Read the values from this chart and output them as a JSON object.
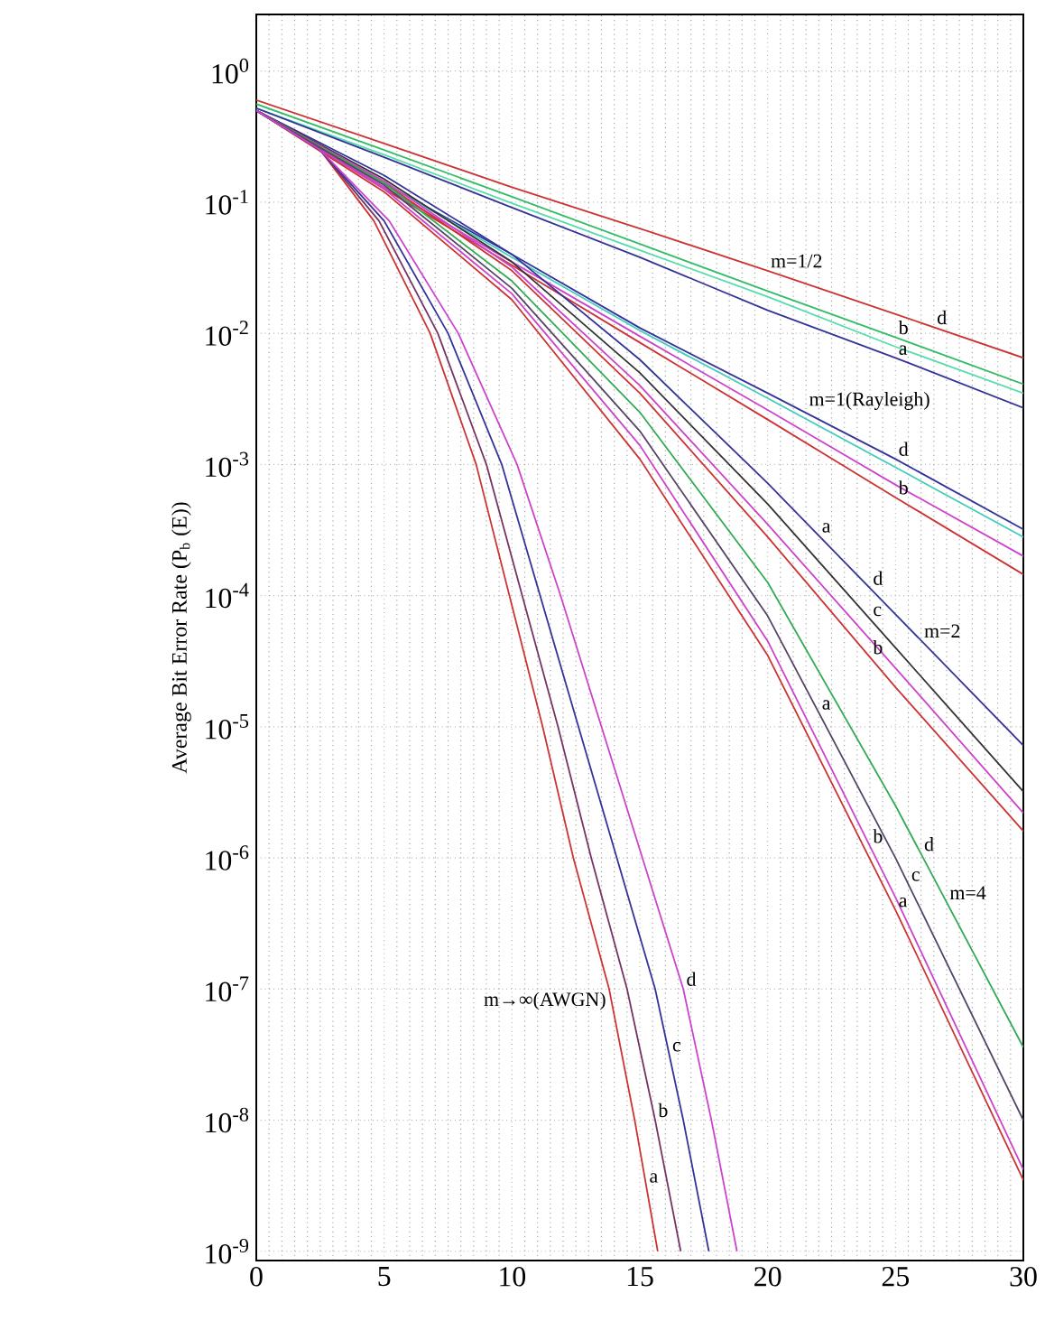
{
  "chart_data": {
    "type": "line",
    "ylabel": "Average Bit Error Rate (P$_{b}$ (E))",
    "log": "y",
    "grid": true,
    "marker": "none",
    "line_style": "solid",
    "xlim": [
      0,
      30
    ],
    "ylim": [
      8.5e-10,
      2.7
    ],
    "xticks": [
      0,
      5,
      10,
      15,
      20,
      25,
      30
    ],
    "yticks": [
      {
        "value": 1,
        "label": "10$^{0}$"
      },
      {
        "value": 0.1,
        "label": "10$^{-1}$"
      },
      {
        "value": 0.01,
        "label": "10$^{-2}$"
      },
      {
        "value": 0.001,
        "label": "10$^{-3}$"
      },
      {
        "value": 0.0001,
        "label": "10$^{-4}$"
      },
      {
        "value": 1e-05,
        "label": "10$^{-5}$"
      },
      {
        "value": 1e-06,
        "label": "10$^{-6}$"
      },
      {
        "value": 1e-07,
        "label": "10$^{-7}$"
      },
      {
        "value": 1e-08,
        "label": "10$^{-8}$"
      },
      {
        "value": 1e-09,
        "label": "10$^{-9}$"
      }
    ],
    "x": [
      0,
      5,
      10,
      15,
      20,
      25,
      30
    ],
    "series": [
      {
        "color": "#cc3333",
        "values": [
          0.6,
          0.28,
          0.13,
          0.063,
          0.03,
          0.014,
          0.0065
        ]
      },
      {
        "color": "#33bb66",
        "values": [
          0.56,
          0.25,
          0.11,
          0.048,
          0.021,
          0.0093,
          0.0041
        ]
      },
      {
        "color": "#55ddaa",
        "values": [
          0.52,
          0.23,
          0.098,
          0.043,
          0.019,
          0.0079,
          0.0035
        ]
      },
      {
        "color": "#333399",
        "values": [
          0.52,
          0.22,
          0.091,
          0.038,
          0.015,
          0.0065,
          0.0027
        ]
      },
      {
        "color": "#333399",
        "values": [
          0.5,
          0.14,
          0.04,
          0.011,
          0.0035,
          0.0011,
          0.00032
        ]
      },
      {
        "color": "#44ccbb",
        "values": [
          0.5,
          0.14,
          0.038,
          0.0105,
          0.0032,
          0.00095,
          0.00028
        ]
      },
      {
        "color": "#cc44cc",
        "values": [
          0.5,
          0.13,
          0.035,
          0.0095,
          0.0026,
          0.0007,
          0.0002
        ]
      },
      {
        "color": "#cc3333",
        "values": [
          0.5,
          0.126,
          0.033,
          0.0085,
          0.0022,
          0.00056,
          0.000145
        ]
      },
      {
        "color": "#333399",
        "values": [
          0.5,
          0.16,
          0.04,
          0.0063,
          0.00072,
          7.2e-05,
          7.2e-06
        ]
      },
      {
        "color": "#333333",
        "values": [
          0.5,
          0.15,
          0.035,
          0.005,
          0.0005,
          4e-05,
          3.2e-06
        ]
      },
      {
        "color": "#cc44cc",
        "values": [
          0.5,
          0.145,
          0.032,
          0.004,
          0.00035,
          2.8e-05,
          2.2e-06
        ]
      },
      {
        "color": "#cc3333",
        "values": [
          0.5,
          0.14,
          0.03,
          0.0035,
          0.00028,
          2e-05,
          1.6e-06
        ]
      },
      {
        "color": "#33aa55",
        "values": [
          0.5,
          0.14,
          0.025,
          0.0025,
          0.000126,
          2.5e-06,
          3.6e-08
        ]
      },
      {
        "color": "#554466",
        "values": [
          0.5,
          0.135,
          0.022,
          0.0018,
          7e-05,
          1e-06,
          1e-08
        ]
      },
      {
        "color": "#cc44cc",
        "values": [
          0.5,
          0.126,
          0.02,
          0.0014,
          4.5e-05,
          5e-07,
          4.2e-09
        ]
      },
      {
        "color": "#cc3333",
        "values": [
          0.5,
          0.12,
          0.018,
          0.0011,
          3.5e-05,
          4e-07,
          3.5e-09
        ]
      },
      {
        "color": "#cc3333",
        "x": [
          0,
          2.5,
          4.6,
          6.8,
          8.6,
          9.9,
          11.2,
          12.4,
          13.8,
          14.8,
          15.7
        ],
        "values": [
          0.5,
          0.25,
          0.072,
          0.01,
          0.001,
          0.0001,
          1e-05,
          1e-06,
          1e-07,
          1e-08,
          1e-09
        ]
      },
      {
        "color": "#773366",
        "x": [
          0,
          2.5,
          4.8,
          7.1,
          9.0,
          10.4,
          11.8,
          13.1,
          14.5,
          15.6,
          16.6
        ],
        "values": [
          0.5,
          0.25,
          0.072,
          0.01,
          0.001,
          0.0001,
          1e-05,
          1e-06,
          1e-07,
          1e-08,
          1e-09
        ]
      },
      {
        "color": "#333399",
        "x": [
          0,
          2.5,
          5.0,
          7.5,
          9.6,
          11.1,
          12.6,
          14.1,
          15.6,
          16.7,
          17.7
        ],
        "values": [
          0.5,
          0.25,
          0.072,
          0.01,
          0.001,
          0.0001,
          1e-05,
          1e-06,
          1e-07,
          1e-08,
          1e-09
        ]
      },
      {
        "color": "#cc44cc",
        "x": [
          0,
          2.5,
          5.2,
          7.9,
          10.2,
          11.9,
          13.5,
          15.1,
          16.7,
          17.8,
          18.8
        ],
        "values": [
          0.5,
          0.25,
          0.072,
          0.01,
          0.001,
          0.0001,
          1e-05,
          1e-06,
          1e-07,
          1e-08,
          1e-09
        ]
      }
    ],
    "annotations": [
      {
        "text": "m=1/2",
        "x": 20,
        "y": 0.03
      },
      {
        "text": "d",
        "x": 26.5,
        "y": 0.0111
      },
      {
        "text": "b",
        "x": 25,
        "y": 0.0093
      },
      {
        "text": "a",
        "x": 25,
        "y": 0.0065
      },
      {
        "text": "m=1(Rayleigh)",
        "x": 21.5,
        "y": 0.00247
      },
      {
        "text": "d",
        "x": 25,
        "y": 0.0011
      },
      {
        "text": "b",
        "x": 25,
        "y": 0.00056
      },
      {
        "text": "a",
        "x": 22,
        "y": 0.000287
      },
      {
        "text": "d",
        "x": 24,
        "y": 0.000114
      },
      {
        "text": "c",
        "x": 24,
        "y": 6.62e-05
      },
      {
        "text": "m=2",
        "x": 26,
        "y": 4.54e-05
      },
      {
        "text": "b",
        "x": 24,
        "y": 3.39e-05
      },
      {
        "text": "a",
        "x": 22,
        "y": 1.28e-05
      },
      {
        "text": "d",
        "x": 26,
        "y": 1.07e-06
      },
      {
        "text": "c",
        "x": 25.5,
        "y": 6.31e-07
      },
      {
        "text": "m=4",
        "x": 27,
        "y": 4.58e-07
      },
      {
        "text": "b",
        "x": 24,
        "y": 1.23e-06
      },
      {
        "text": "a",
        "x": 25,
        "y": 4e-07
      },
      {
        "text": "m→∞(AWGN)",
        "x": 13.8,
        "y": 1e-07
      },
      {
        "text": "d",
        "x": 16.7,
        "y": 1e-07
      },
      {
        "text": "c",
        "x": 16.15,
        "y": 3.16e-08
      },
      {
        "text": "b",
        "x": 15.6,
        "y": 1e-08
      },
      {
        "text": "a",
        "x": 15.25,
        "y": 3.16e-09
      }
    ]
  }
}
